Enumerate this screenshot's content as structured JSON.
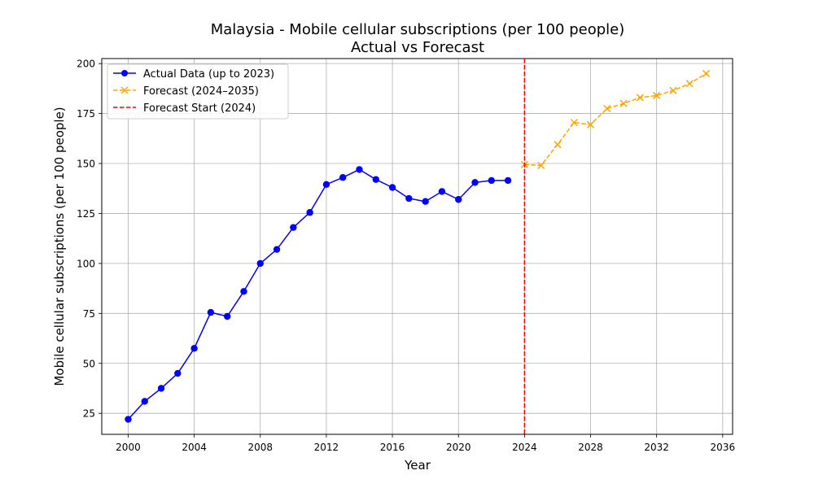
{
  "chart_data": {
    "type": "line",
    "title": "Malaysia - Mobile cellular subscriptions (per 100 people)",
    "subtitle": "Actual vs Forecast",
    "xlabel": "Year",
    "ylabel": "Mobile cellular subscriptions (per 100 people)",
    "xlim": [
      1998.4,
      2036.6
    ],
    "ylim": [
      14.5,
      202.5
    ],
    "xticks": [
      2000,
      2004,
      2008,
      2012,
      2016,
      2020,
      2024,
      2028,
      2032,
      2036
    ],
    "yticks": [
      25,
      50,
      75,
      100,
      125,
      150,
      175,
      200
    ],
    "grid": true,
    "legend_position": "top-left",
    "forecast_start": {
      "x": 2024,
      "label": "Forecast Start (2024)",
      "color": "#ff0000"
    },
    "series": [
      {
        "name": "Actual Data (up to 2023)",
        "color": "#0000ff",
        "marker": "circle",
        "style": "solid",
        "x": [
          2000,
          2001,
          2002,
          2003,
          2004,
          2005,
          2006,
          2007,
          2008,
          2009,
          2010,
          2011,
          2012,
          2013,
          2014,
          2015,
          2016,
          2017,
          2018,
          2019,
          2020,
          2021,
          2022,
          2023
        ],
        "y": [
          22,
          31,
          37.5,
          45,
          57.5,
          75.5,
          73.5,
          86,
          100,
          107,
          118,
          125.5,
          139.5,
          143,
          147,
          142,
          138,
          132.5,
          131,
          136,
          132,
          140.5,
          141.5,
          141.5
        ]
      },
      {
        "name": "Forecast (2024–2035)",
        "color": "#ffa500",
        "marker": "x",
        "style": "dashed",
        "x": [
          2024,
          2025,
          2026,
          2027,
          2028,
          2029,
          2030,
          2031,
          2032,
          2033,
          2034,
          2035
        ],
        "y": [
          149.5,
          149,
          159.5,
          170.5,
          169.5,
          177.5,
          180,
          183,
          184,
          186.5,
          190,
          195
        ]
      }
    ]
  }
}
